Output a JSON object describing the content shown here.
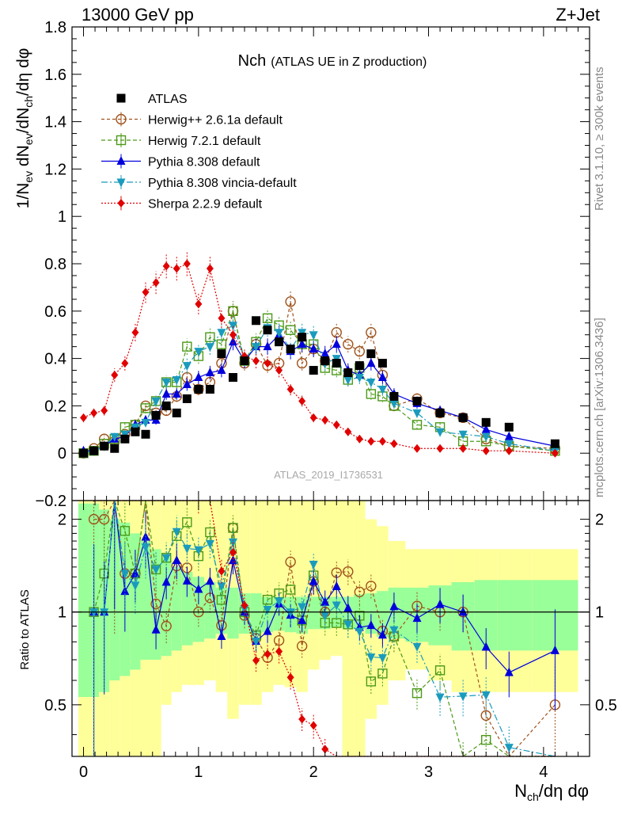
{
  "header": {
    "energy_label": "13000 GeV pp",
    "process_label": "Z+Jet",
    "side_label_rivet": "Rivet 3.1.10, ≥ 300k events",
    "side_label_mcplots": "mcplots.cern.ch [arXiv:1306.3436]",
    "analysis_id": "ATLAS_2019_I1736531"
  },
  "chart_data": {
    "type": "scatter",
    "title_main": "Nch",
    "title_sub": "(ATLAS UE in Z production)",
    "xlabel": "N_ch/dη dφ",
    "ylabel": "1/N_ev dN_ev/dN_ch/dη dφ",
    "ratio_ylabel": "Ratio to ATLAS",
    "xlim": [
      -0.1,
      4.4
    ],
    "ylim": [
      -0.2,
      1.8
    ],
    "ratio_ylim": [
      0.34,
      2.3
    ],
    "x_ticks": [
      0,
      1,
      2,
      3,
      4
    ],
    "y_ticks": [
      -0.2,
      0,
      0.2,
      0.4,
      0.6,
      0.8,
      1,
      1.2,
      1.4,
      1.6,
      1.8
    ],
    "y_tick_labels": [
      "−0.2",
      "0",
      "0.2",
      "0.4",
      "0.6",
      "0.8",
      "1",
      "1.2",
      "1.4",
      "1.6",
      "1.8"
    ],
    "ratio_ticks": [
      0.5,
      1,
      2
    ],
    "legend": [
      {
        "name": "ATLAS",
        "color": "#000000",
        "marker": "square",
        "dash": ""
      },
      {
        "name": "Herwig++ 2.6.1a default",
        "color": "#a0521b",
        "marker": "circle-open",
        "dash": "4,3"
      },
      {
        "name": "Herwig 7.2.1 default",
        "color": "#4b9a17",
        "marker": "square-open",
        "dash": "5,3"
      },
      {
        "name": "Pythia 8.308 default",
        "color": "#0000dd",
        "marker": "triangle-up",
        "dash": ""
      },
      {
        "name": "Pythia 8.308 vincia-default",
        "color": "#1a9bbd",
        "marker": "triangle-down",
        "dash": "8,3,2,3"
      },
      {
        "name": "Sherpa 2.2.9 default",
        "color": "#e00000",
        "marker": "diamond",
        "dash": "2,2"
      }
    ],
    "data": {
      "x": [
        0.0,
        0.09,
        0.18,
        0.27,
        0.36,
        0.45,
        0.54,
        0.63,
        0.72,
        0.81,
        0.9,
        1.0,
        1.1,
        1.2,
        1.3,
        1.4,
        1.5,
        1.6,
        1.7,
        1.8,
        1.9,
        2.0,
        2.1,
        2.2,
        2.3,
        2.4,
        2.5,
        2.6,
        2.7,
        2.9,
        3.1,
        3.3,
        3.5,
        3.7,
        4.1
      ],
      "values": [
        0.0,
        0.01,
        0.03,
        0.02,
        0.06,
        0.09,
        0.08,
        0.16,
        0.2,
        0.17,
        0.23,
        0.27,
        0.27,
        0.42,
        0.32,
        0.39,
        0.56,
        0.52,
        0.47,
        0.44,
        0.49,
        0.35,
        0.39,
        0.38,
        0.34,
        0.37,
        0.42,
        0.38,
        0.24,
        0.22,
        0.17,
        0.15,
        0.13,
        0.11,
        0.04
      ]
    },
    "series": [
      {
        "name": "Herwig++ 2.6.1a default",
        "values": [
          0.0,
          0.02,
          0.06,
          0.05,
          0.08,
          0.12,
          0.2,
          0.17,
          0.18,
          0.24,
          0.32,
          0.27,
          0.3,
          0.38,
          0.6,
          0.38,
          0.46,
          0.37,
          0.38,
          0.64,
          0.38,
          0.44,
          0.39,
          0.51,
          0.46,
          0.43,
          0.51,
          0.33,
          0.2,
          0.23,
          0.17,
          0.15,
          0.06,
          0.03,
          0.02
        ]
      },
      {
        "name": "Herwig 7.2.1 default",
        "values": [
          0.0,
          0.01,
          0.04,
          0.06,
          0.11,
          0.12,
          0.19,
          0.22,
          0.3,
          0.3,
          0.45,
          0.41,
          0.49,
          0.46,
          0.6,
          0.39,
          0.47,
          0.57,
          0.54,
          0.52,
          0.46,
          0.46,
          0.36,
          0.35,
          0.31,
          0.36,
          0.25,
          0.24,
          0.2,
          0.12,
          0.11,
          0.05,
          0.05,
          0.03,
          0.01
        ]
      },
      {
        "name": "Pythia 8.308 default",
        "values": [
          0.01,
          0.01,
          0.03,
          0.06,
          0.07,
          0.12,
          0.14,
          0.14,
          0.25,
          0.25,
          0.29,
          0.32,
          0.34,
          0.35,
          0.47,
          0.39,
          0.45,
          0.45,
          0.5,
          0.43,
          0.46,
          0.44,
          0.42,
          0.46,
          0.35,
          0.33,
          0.38,
          0.32,
          0.25,
          0.21,
          0.18,
          0.15,
          0.1,
          0.07,
          0.03
        ]
      },
      {
        "name": "Pythia 8.308 vincia-default",
        "values": [
          0.0,
          0.01,
          0.03,
          0.07,
          0.08,
          0.11,
          0.13,
          0.22,
          0.3,
          0.31,
          0.37,
          0.43,
          0.45,
          0.51,
          0.54,
          0.4,
          0.45,
          0.53,
          0.51,
          0.44,
          0.51,
          0.5,
          0.38,
          0.4,
          0.31,
          0.32,
          0.3,
          0.27,
          0.21,
          0.17,
          0.09,
          0.08,
          0.07,
          0.04,
          0.01
        ]
      },
      {
        "name": "Sherpa 2.2.9 default",
        "values": [
          0.15,
          0.17,
          0.18,
          0.33,
          0.38,
          0.51,
          0.68,
          0.72,
          0.79,
          0.78,
          0.8,
          0.63,
          0.78,
          0.57,
          0.5,
          0.41,
          0.39,
          0.38,
          0.35,
          0.27,
          0.22,
          0.15,
          0.14,
          0.12,
          0.09,
          0.06,
          0.05,
          0.05,
          0.04,
          0.02,
          0.02,
          0.02,
          0.01,
          0.01,
          0.0
        ]
      }
    ],
    "ratio_bands": {
      "green_lower": [
        0.53,
        0.53,
        0.55,
        0.6,
        0.62,
        0.65,
        0.7,
        0.7,
        0.72,
        0.75,
        0.78,
        0.8,
        0.82,
        0.85,
        0.82,
        0.85,
        0.85,
        0.86,
        0.87,
        0.86,
        0.85,
        0.88,
        0.88,
        0.89,
        0.88,
        0.88,
        0.85,
        0.83,
        0.82,
        0.8,
        0.78,
        0.75,
        0.75,
        0.75,
        0.75
      ],
      "green_upper": [
        2.25,
        2.25,
        2.15,
        2.0,
        1.95,
        1.8,
        1.7,
        1.6,
        1.5,
        1.4,
        1.35,
        1.3,
        1.25,
        1.2,
        1.2,
        1.15,
        1.15,
        1.12,
        1.12,
        1.12,
        1.12,
        1.12,
        1.12,
        1.12,
        1.12,
        1.14,
        1.15,
        1.17,
        1.2,
        1.2,
        1.22,
        1.25,
        1.27,
        1.27,
        1.27
      ],
      "yellow_lower": [
        0.34,
        0.34,
        0.34,
        0.34,
        0.34,
        0.34,
        0.34,
        0.34,
        0.5,
        0.55,
        0.58,
        0.58,
        0.6,
        0.55,
        0.45,
        0.5,
        0.5,
        0.55,
        0.58,
        0.57,
        0.55,
        0.65,
        0.7,
        0.72,
        0.34,
        0.34,
        0.45,
        0.5,
        0.6,
        0.65,
        0.6,
        0.55,
        0.55,
        0.55,
        0.55
      ],
      "yellow_upper": [
        2.3,
        2.3,
        2.3,
        2.3,
        2.3,
        2.3,
        2.3,
        2.3,
        2.3,
        2.3,
        2.3,
        2.3,
        2.3,
        2.3,
        2.3,
        2.3,
        2.3,
        2.3,
        2.3,
        2.3,
        2.3,
        2.3,
        2.3,
        2.3,
        2.3,
        2.3,
        2.0,
        1.9,
        1.7,
        1.6,
        1.6,
        1.6,
        1.6,
        1.6,
        1.6
      ]
    }
  }
}
